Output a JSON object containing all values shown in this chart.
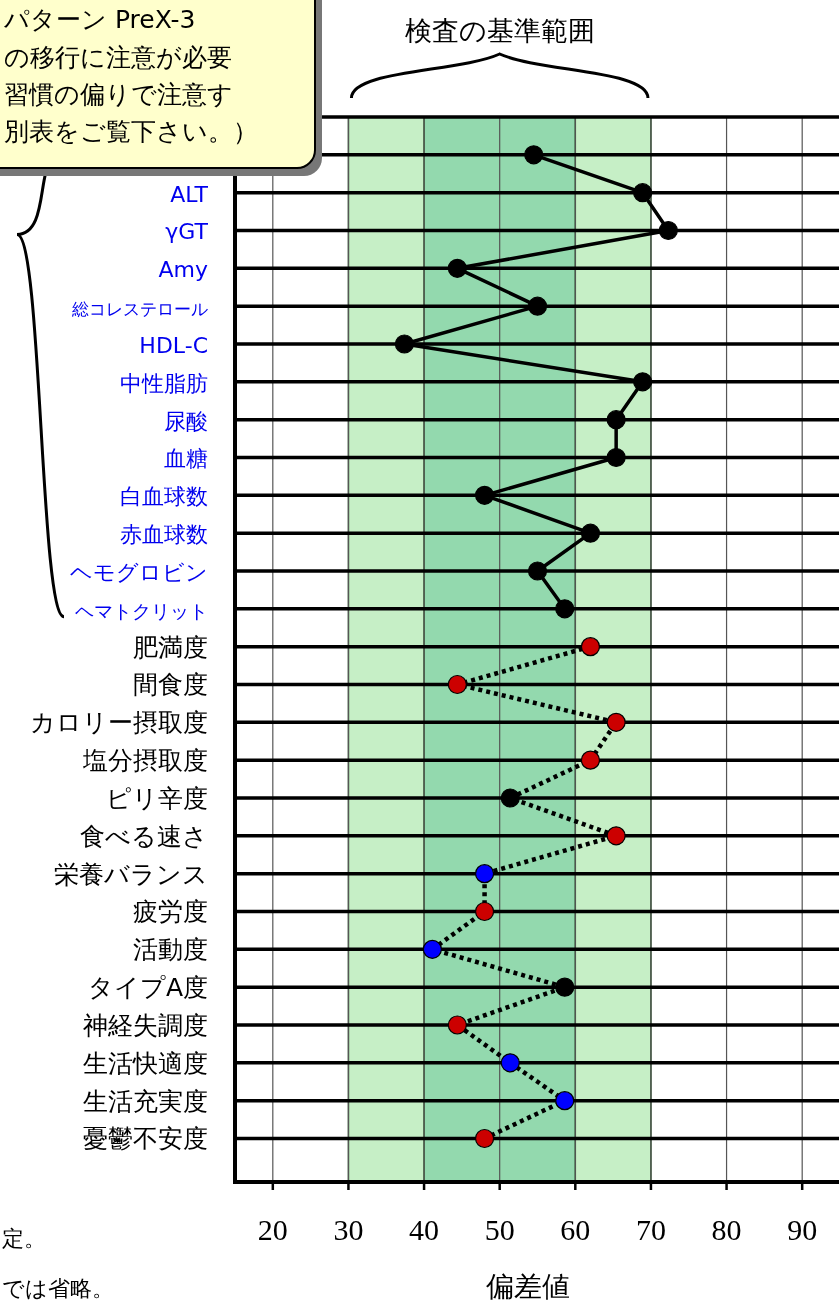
{
  "chart_data": {
    "type": "line",
    "orientation": "horizontal",
    "xlabel": "偏差値",
    "categories": [
      null,
      "ALT",
      "γGT",
      "Amy",
      "総コレステロール",
      "HDL-C",
      "中性脂肪",
      "尿酸",
      "血糖",
      "白血球数",
      "赤血球数",
      "ヘモグロビン",
      "ヘマトクリット",
      "肥満度",
      "間食度",
      "カロリー摂取度",
      "塩分摂取度",
      "ピリ辛度",
      "食べる速さ",
      "栄養バランス",
      "疲労度",
      "活動度",
      "タイプA度",
      "神経失調度",
      "生活快適度",
      "生活充実度",
      "憂鬱不安度"
    ],
    "series": [
      {
        "color": "#000000",
        "line_style": "solid",
        "values": [
          54.5,
          68.9,
          72.3,
          44.4,
          55.0,
          37.4,
          68.9,
          65.4,
          65.4,
          48.0,
          62.0,
          55.0,
          58.6,
          null,
          null,
          null,
          null,
          null,
          null,
          null,
          null,
          null,
          null,
          null,
          null,
          null,
          null
        ]
      },
      {
        "color": "#000000",
        "line_style": "dotted",
        "values": [
          null,
          null,
          null,
          null,
          null,
          null,
          null,
          null,
          null,
          null,
          null,
          null,
          null,
          62.0,
          44.4,
          65.4,
          62.0,
          51.4,
          65.4,
          48.0,
          48.0,
          41.1,
          58.6,
          44.4,
          51.4,
          58.6,
          48.0
        ],
        "colors": [
          null,
          null,
          null,
          null,
          null,
          null,
          null,
          null,
          null,
          null,
          null,
          null,
          null,
          "#cc0000",
          "#cc0000",
          "#cc0000",
          "#cc0000",
          "#000000",
          "#cc0000",
          "#0000ff",
          "#cc0000",
          "#0000ff",
          "#000000",
          "#cc0000",
          "#0000ff",
          "#0000ff",
          "#cc0000"
        ]
      }
    ],
    "marker": "circle",
    "xlim": [
      15,
      95
    ],
    "xticks": [
      20,
      30,
      40,
      50,
      60,
      70,
      80,
      90
    ],
    "grid": true,
    "bands": [
      {
        "axis": "x",
        "from": 30,
        "to": 70,
        "label": "検査の基準範囲",
        "color": "#c6efc6"
      },
      {
        "axis": "x",
        "from": 40,
        "to": 60,
        "color": "#93d9ae"
      }
    ],
    "annotations": [
      "パターン PreX-3",
      "の移行に注意が必要",
      "習慣の偏りで注意す",
      "別表をご覧下さい。）",
      "定。",
      "では省略。"
    ]
  }
}
